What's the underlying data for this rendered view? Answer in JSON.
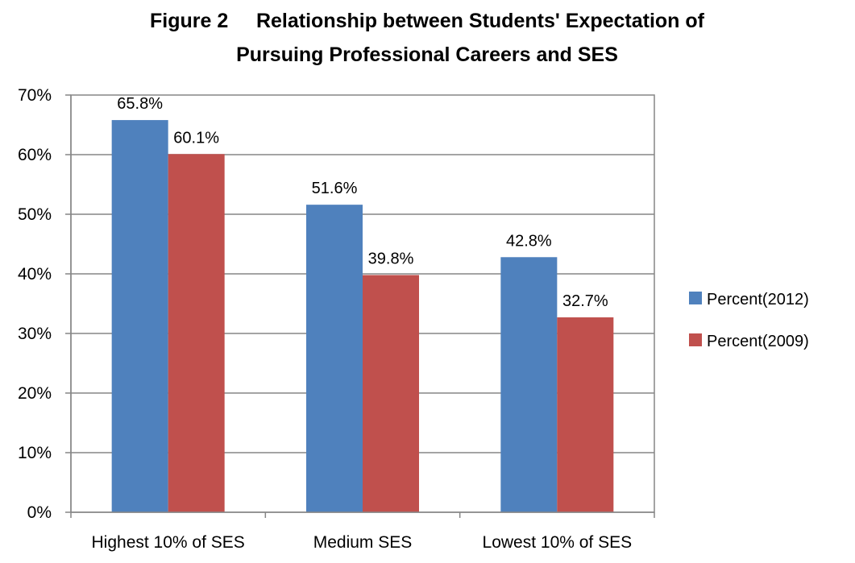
{
  "chart_data": {
    "type": "bar",
    "title_line1": "Figure 2     Relationship between Students' Expectation of",
    "title_line2": "Pursuing Professional Careers and SES",
    "categories": [
      "Highest 10% of SES",
      "Medium SES",
      "Lowest 10% of SES"
    ],
    "series": [
      {
        "name": "Percent(2012)",
        "color": "#4f81bd",
        "values": [
          65.8,
          51.6,
          42.8
        ],
        "labels": [
          "65.8%",
          "51.6%",
          "42.8%"
        ]
      },
      {
        "name": "Percent(2009)",
        "color": "#c0504d",
        "values": [
          60.1,
          39.8,
          32.7
        ],
        "labels": [
          "60.1%",
          "39.8%",
          "32.7%"
        ]
      }
    ],
    "ylim": [
      0,
      70
    ],
    "yticks": [
      "0%",
      "10%",
      "20%",
      "30%",
      "40%",
      "50%",
      "60%",
      "70%"
    ],
    "grid": true,
    "legend_position": "right",
    "xlabel": "",
    "ylabel": ""
  }
}
